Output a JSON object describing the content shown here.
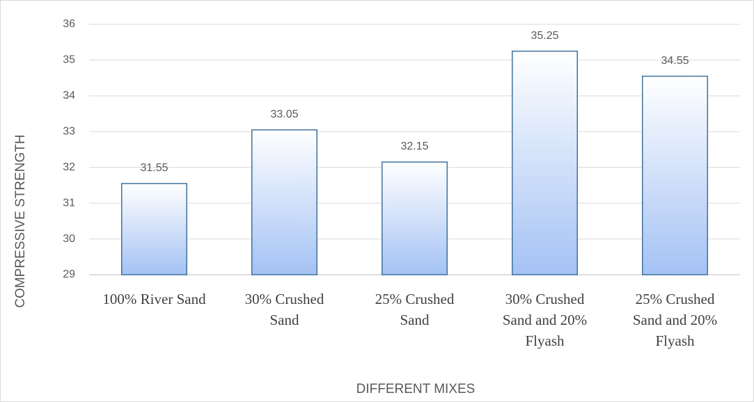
{
  "chart_data": {
    "type": "bar",
    "categories": [
      "100% River Sand",
      "30% Crushed Sand",
      "25% Crushed Sand",
      "30% Crushed Sand and 20% Flyash",
      "25% Crushed Sand and 20% Flyash"
    ],
    "values": [
      31.55,
      33.05,
      32.15,
      35.25,
      34.55
    ],
    "color": "#a4c2f4",
    "xlabel": "DIFFERENT MIXES",
    "ylabel": "COMPRESSIVE STRENGTH",
    "ylim": [
      29,
      36
    ],
    "yticks": [
      29,
      30,
      31,
      32,
      33,
      34,
      35,
      36
    ],
    "grid": true
  }
}
